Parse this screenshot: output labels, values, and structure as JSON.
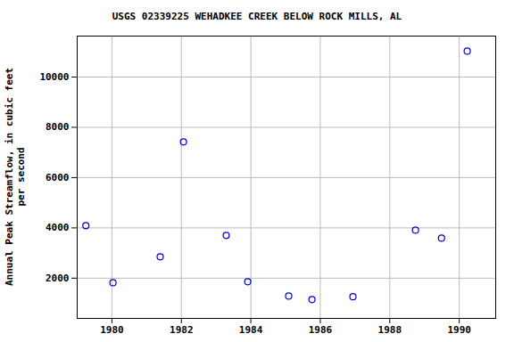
{
  "chart_data": {
    "type": "scatter",
    "title": "USGS 02339225 WEHADKEE CREEK BELOW ROCK MILLS, AL",
    "y_label": "Annual Peak Streamflow, in cubic feet\nper second",
    "x": [
      1979.25,
      1980.03,
      1981.39,
      1982.06,
      1983.29,
      1983.91,
      1985.09,
      1985.76,
      1986.94,
      1988.74,
      1989.49,
      1990.23
    ],
    "values": [
      4090,
      1820,
      2850,
      7420,
      3700,
      1860,
      1290,
      1150,
      1260,
      3910,
      3590,
      11030
    ],
    "xlim": [
      1979,
      1991.05
    ],
    "ylim": [
      400,
      11630
    ],
    "xticks": [
      1980,
      1982,
      1984,
      1986,
      1988,
      1990
    ],
    "yticks": [
      2000,
      4000,
      6000,
      8000,
      10000
    ],
    "grid": true,
    "color": "#0000cc",
    "marker": "circle"
  }
}
